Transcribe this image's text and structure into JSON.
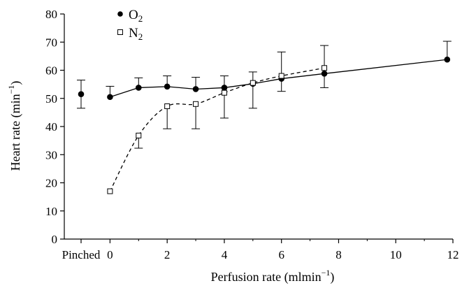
{
  "chart_data": {
    "type": "line",
    "xlabel": "Perfusion rate (mlmin",
    "xlabel_sup": "−1",
    "xlabel_end": ")",
    "ylabel": "Heart rate (min",
    "ylabel_sup": "−1",
    "ylabel_end": ")",
    "xlim": [
      -1.6,
      12
    ],
    "ylim": [
      0,
      80
    ],
    "x_ticks": [
      0,
      2,
      4,
      6,
      8,
      10,
      12
    ],
    "y_ticks": [
      0,
      10,
      20,
      30,
      40,
      50,
      60,
      70,
      80
    ],
    "pinched_label": "Pinched",
    "pinched": {
      "y": 51.5,
      "err_low": 5,
      "err_high": 5
    },
    "grid": false,
    "legend_position": "top-left",
    "series": [
      {
        "name": "O",
        "name_sub": "2",
        "marker": "filled-circle",
        "line": "solid",
        "x": [
          0,
          1,
          2,
          3,
          4,
          5,
          6,
          7.5,
          11.8
        ],
        "y": [
          50.5,
          53.8,
          54.2,
          53.3,
          53.8,
          55.2,
          57,
          58.8,
          63.8
        ],
        "err_low": [
          0,
          0,
          0,
          0,
          0,
          0,
          4.5,
          5,
          0
        ],
        "err_high": [
          3.8,
          3.5,
          3.8,
          4.2,
          4.2,
          4.2,
          9.5,
          10,
          6.5
        ]
      },
      {
        "name": "N",
        "name_sub": "2",
        "marker": "open-square",
        "line": "dashed",
        "x": [
          0,
          1,
          2,
          3,
          4,
          5,
          6,
          7.5
        ],
        "y": [
          17,
          36.8,
          47.2,
          48,
          52,
          55.5,
          58,
          60.8
        ],
        "err_low": [
          0,
          4.5,
          8,
          8.8,
          9,
          9,
          0,
          0
        ],
        "err_high": [
          0,
          0,
          0,
          0,
          0,
          0,
          0,
          0
        ]
      }
    ]
  }
}
